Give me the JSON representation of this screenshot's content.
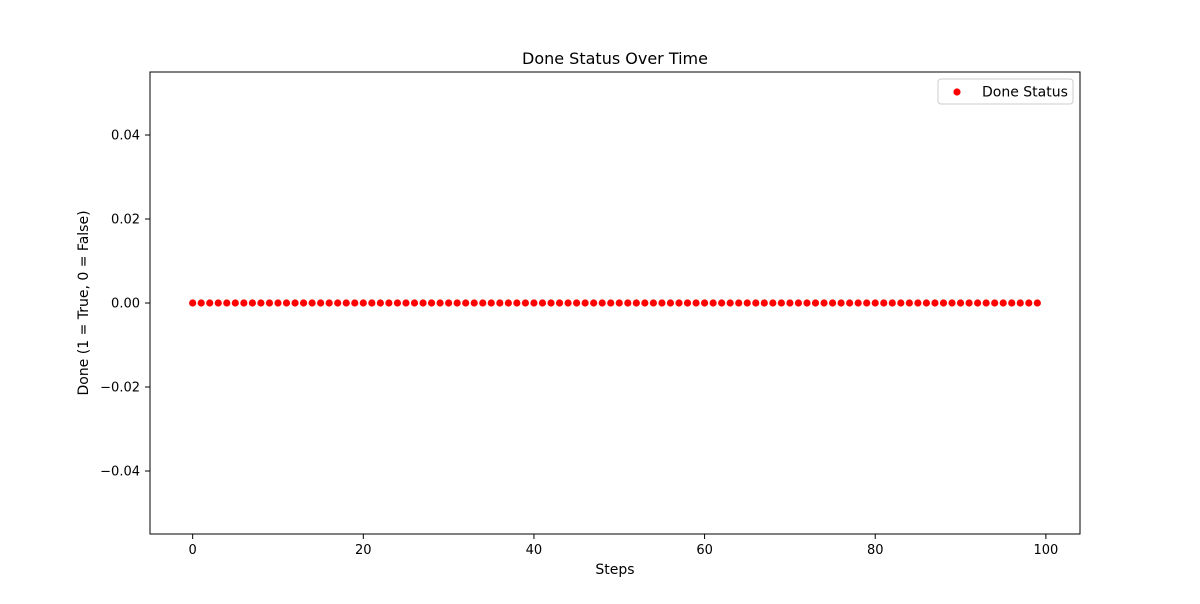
{
  "chart_data": {
    "type": "scatter",
    "title": "Done Status Over Time",
    "xlabel": "Steps",
    "ylabel": "Done (1 = True, 0 = False)",
    "xlim": [
      -5,
      104
    ],
    "ylim": [
      -0.055,
      0.055
    ],
    "x_ticks": [
      0,
      20,
      40,
      60,
      80,
      100
    ],
    "x_tick_labels": [
      "0",
      "20",
      "40",
      "60",
      "80",
      "100"
    ],
    "y_ticks": [
      0.04,
      0.02,
      0.0,
      -0.02,
      -0.04
    ],
    "y_tick_labels": [
      "0.04",
      "0.02",
      "0.00",
      "−0.02",
      "−0.04"
    ],
    "grid": false,
    "legend": {
      "placement": "top-right",
      "entries": [
        "Done Status"
      ]
    },
    "series": [
      {
        "name": "Done Status",
        "color": "#ff0000",
        "x": [
          0,
          1,
          2,
          3,
          4,
          5,
          6,
          7,
          8,
          9,
          10,
          11,
          12,
          13,
          14,
          15,
          16,
          17,
          18,
          19,
          20,
          21,
          22,
          23,
          24,
          25,
          26,
          27,
          28,
          29,
          30,
          31,
          32,
          33,
          34,
          35,
          36,
          37,
          38,
          39,
          40,
          41,
          42,
          43,
          44,
          45,
          46,
          47,
          48,
          49,
          50,
          51,
          52,
          53,
          54,
          55,
          56,
          57,
          58,
          59,
          60,
          61,
          62,
          63,
          64,
          65,
          66,
          67,
          68,
          69,
          70,
          71,
          72,
          73,
          74,
          75,
          76,
          77,
          78,
          79,
          80,
          81,
          82,
          83,
          84,
          85,
          86,
          87,
          88,
          89,
          90,
          91,
          92,
          93,
          94,
          95,
          96,
          97,
          98,
          99
        ],
        "y": [
          0,
          0,
          0,
          0,
          0,
          0,
          0,
          0,
          0,
          0,
          0,
          0,
          0,
          0,
          0,
          0,
          0,
          0,
          0,
          0,
          0,
          0,
          0,
          0,
          0,
          0,
          0,
          0,
          0,
          0,
          0,
          0,
          0,
          0,
          0,
          0,
          0,
          0,
          0,
          0,
          0,
          0,
          0,
          0,
          0,
          0,
          0,
          0,
          0,
          0,
          0,
          0,
          0,
          0,
          0,
          0,
          0,
          0,
          0,
          0,
          0,
          0,
          0,
          0,
          0,
          0,
          0,
          0,
          0,
          0,
          0,
          0,
          0,
          0,
          0,
          0,
          0,
          0,
          0,
          0,
          0,
          0,
          0,
          0,
          0,
          0,
          0,
          0,
          0,
          0,
          0,
          0,
          0,
          0,
          0,
          0,
          0,
          0,
          0,
          0
        ]
      }
    ]
  }
}
